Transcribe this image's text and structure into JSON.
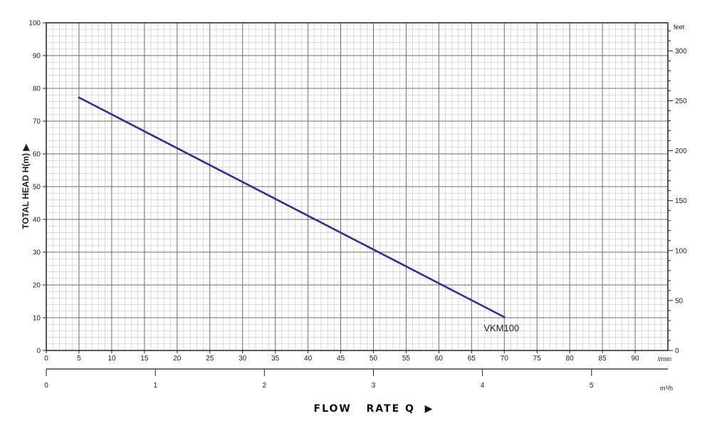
{
  "chart_data": {
    "type": "line",
    "ylabel": "TOTAL HEAD H(m) ▶",
    "xlabel": "FLOW   RATE Q  ▶",
    "x_unit": "l/min",
    "x2_unit": "m³/h",
    "y2_unit": "feet",
    "xlim": [
      0,
      95
    ],
    "ylim": [
      0,
      100
    ],
    "x_ticks": [
      0,
      5,
      10,
      15,
      20,
      25,
      30,
      35,
      40,
      45,
      50,
      55,
      60,
      65,
      70,
      75,
      80,
      85,
      90
    ],
    "y_ticks": [
      0,
      10,
      20,
      30,
      40,
      50,
      60,
      70,
      80,
      90,
      100
    ],
    "y2_ticks": [
      0,
      50,
      100,
      150,
      200,
      250,
      300
    ],
    "x2_ticks": [
      0,
      1,
      2,
      3,
      4,
      5
    ],
    "grid": true,
    "series": [
      {
        "name": "VKM100",
        "color": "#2d3191",
        "points": [
          [
            5,
            77.2
          ],
          [
            70,
            10.2
          ]
        ]
      }
    ]
  }
}
